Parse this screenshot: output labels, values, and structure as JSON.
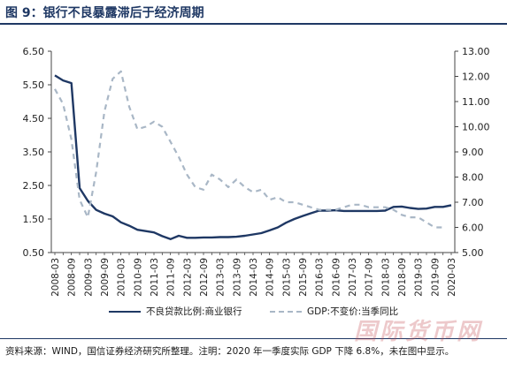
{
  "figure": {
    "title": "图 9：银行不良暴露滞后于经济周期",
    "source_note": "资料来源：WIND，国信证券经济研究所整理。注明：2020 年一季度实际 GDP 下降 6.8%，未在图中显示。",
    "watermark": "国际货币网"
  },
  "colors": {
    "title": "#1f3864",
    "npl_line": "#1f3864",
    "gdp_line": "#a9b7c6"
  },
  "chart_data": {
    "type": "line",
    "title": "",
    "x": [
      "2008-03",
      "2008-06",
      "2008-09",
      "2008-12",
      "2009-03",
      "2009-06",
      "2009-09",
      "2009-12",
      "2010-03",
      "2010-06",
      "2010-09",
      "2010-12",
      "2011-03",
      "2011-06",
      "2011-09",
      "2011-12",
      "2012-03",
      "2012-06",
      "2012-09",
      "2012-12",
      "2013-03",
      "2013-06",
      "2013-09",
      "2013-12",
      "2014-03",
      "2014-06",
      "2014-09",
      "2014-12",
      "2015-03",
      "2015-06",
      "2015-09",
      "2015-12",
      "2016-03",
      "2016-06",
      "2016-09",
      "2016-12",
      "2017-03",
      "2017-06",
      "2017-09",
      "2017-12",
      "2018-03",
      "2018-06",
      "2018-09",
      "2018-12",
      "2019-03",
      "2019-06",
      "2019-09",
      "2019-12",
      "2020-03"
    ],
    "x_tick_labels": [
      "2008-03",
      "2008-09",
      "2009-03",
      "2009-09",
      "2010-03",
      "2010-09",
      "2011-03",
      "2011-09",
      "2012-03",
      "2012-09",
      "2013-03",
      "2013-09",
      "2014-03",
      "2014-09",
      "2015-03",
      "2015-09",
      "2016-03",
      "2016-09",
      "2017-03",
      "2017-09",
      "2018-03",
      "2018-09",
      "2019-03",
      "2019-09",
      "2020-03"
    ],
    "y_left": {
      "ylim": [
        0.5,
        6.5
      ],
      "ticks": [
        "0.50",
        "1.50",
        "2.50",
        "3.50",
        "4.50",
        "5.50",
        "6.50"
      ]
    },
    "y_right": {
      "ylim": [
        5.0,
        13.0
      ],
      "ticks": [
        "5.00",
        "6.00",
        "7.00",
        "8.00",
        "9.00",
        "10.00",
        "11.00",
        "12.00",
        "13.00"
      ]
    },
    "grid": false,
    "legend_position": "bottom",
    "series": [
      {
        "name": "不良贷款比例:商业银行",
        "axis": "left",
        "style": "solid",
        "values": [
          5.78,
          5.63,
          5.55,
          2.42,
          2.04,
          1.77,
          1.66,
          1.58,
          1.4,
          1.3,
          1.18,
          1.14,
          1.1,
          0.99,
          0.9,
          1.0,
          0.94,
          0.94,
          0.95,
          0.95,
          0.96,
          0.96,
          0.97,
          1.0,
          1.04,
          1.08,
          1.16,
          1.25,
          1.39,
          1.5,
          1.59,
          1.67,
          1.75,
          1.75,
          1.76,
          1.74,
          1.74,
          1.74,
          1.74,
          1.74,
          1.75,
          1.86,
          1.87,
          1.83,
          1.8,
          1.81,
          1.86,
          1.86,
          1.91
        ]
      },
      {
        "name": "GDP:不变价:当季同比",
        "axis": "right",
        "style": "dashed",
        "values": [
          11.5,
          10.9,
          9.5,
          7.1,
          6.4,
          8.2,
          10.6,
          11.9,
          12.2,
          10.8,
          9.9,
          10.0,
          10.2,
          10.0,
          9.4,
          8.8,
          8.1,
          7.6,
          7.5,
          8.1,
          7.9,
          7.6,
          7.9,
          7.6,
          7.4,
          7.5,
          7.1,
          7.2,
          7.0,
          7.0,
          6.9,
          6.8,
          6.7,
          6.7,
          6.7,
          6.8,
          6.9,
          6.9,
          6.8,
          6.8,
          6.8,
          6.7,
          6.5,
          6.4,
          6.4,
          6.2,
          6.0,
          6.0,
          null
        ]
      }
    ]
  }
}
